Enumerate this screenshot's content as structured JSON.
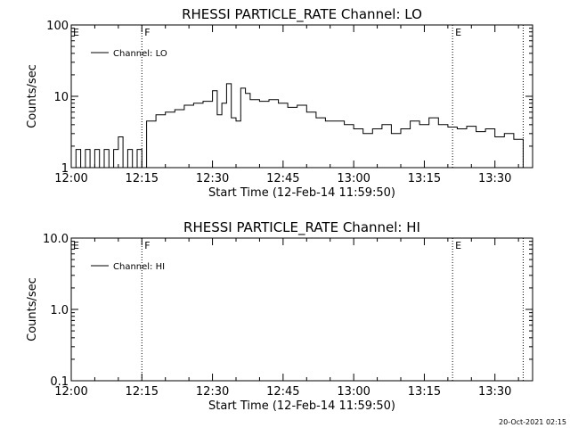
{
  "footer": {
    "timestamp": "20-Oct-2021 02:15"
  },
  "chart_data": [
    {
      "type": "line",
      "title": "RHESSI PARTICLE_RATE Channel: LO",
      "xlabel": "Start Time (12-Feb-14 11:59:50)",
      "ylabel": "Counts/sec",
      "yscale": "log",
      "ylim": [
        1,
        100
      ],
      "xlim": [
        "12:00",
        "13:38"
      ],
      "x_tick_labels": [
        "12:00",
        "12:15",
        "12:30",
        "12:45",
        "13:00",
        "13:15",
        "13:30"
      ],
      "y_tick_labels": [
        "1",
        "10",
        "100"
      ],
      "legend": {
        "label": "Channel: LO",
        "placement": "top-left"
      },
      "grid": false,
      "markers": [
        {
          "time": "12:15",
          "label": "F"
        },
        {
          "time": "13:21",
          "label": "E"
        },
        {
          "time": "13:36",
          "label": ""
        }
      ],
      "corner_label": "E",
      "series": [
        {
          "name": "Channel: LO",
          "x": [
            "12:00",
            "12:01",
            "12:02",
            "12:03",
            "12:04",
            "12:05",
            "12:06",
            "12:07",
            "12:08",
            "12:09",
            "12:10",
            "12:11",
            "12:12",
            "12:13",
            "12:14",
            "12:15",
            "12:16",
            "12:18",
            "12:20",
            "12:22",
            "12:24",
            "12:26",
            "12:28",
            "12:30",
            "12:31",
            "12:32",
            "12:33",
            "12:34",
            "12:35",
            "12:36",
            "12:37",
            "12:38",
            "12:40",
            "12:42",
            "12:44",
            "12:46",
            "12:48",
            "12:50",
            "12:52",
            "12:54",
            "12:56",
            "12:58",
            "13:00",
            "13:02",
            "13:04",
            "13:06",
            "13:08",
            "13:10",
            "13:12",
            "13:14",
            "13:16",
            "13:18",
            "13:20",
            "13:22",
            "13:24",
            "13:26",
            "13:28",
            "13:30",
            "13:32",
            "13:34",
            "13:35",
            "13:36"
          ],
          "values": [
            1,
            1.8,
            1,
            1.8,
            1,
            1.8,
            1,
            1.8,
            1,
            1.8,
            2.7,
            1,
            1.8,
            1,
            1.8,
            1,
            4.5,
            5.5,
            6,
            6.5,
            7.5,
            8,
            8.5,
            12,
            5.5,
            8,
            15,
            5,
            4.5,
            13,
            11,
            9,
            8.5,
            9,
            8,
            7,
            7.5,
            6,
            5,
            4.5,
            4.5,
            4,
            3.5,
            3,
            3.5,
            4,
            3,
            3.5,
            4.5,
            4,
            5,
            4,
            3.7,
            3.5,
            3.8,
            3.2,
            3.5,
            2.7,
            3,
            2.5,
            2.5,
            1
          ]
        }
      ]
    },
    {
      "type": "line",
      "title": "RHESSI PARTICLE_RATE Channel: HI",
      "xlabel": "Start Time (12-Feb-14 11:59:50)",
      "ylabel": "Counts/sec",
      "yscale": "log",
      "ylim": [
        0.1,
        10
      ],
      "xlim": [
        "12:00",
        "13:38"
      ],
      "x_tick_labels": [
        "12:00",
        "12:15",
        "12:30",
        "12:45",
        "13:00",
        "13:15",
        "13:30"
      ],
      "y_tick_labels": [
        "0.1",
        "1.0",
        "10.0"
      ],
      "legend": {
        "label": "Channel: HI",
        "placement": "top-left"
      },
      "grid": false,
      "markers": [
        {
          "time": "12:15",
          "label": "F"
        },
        {
          "time": "13:21",
          "label": "E"
        },
        {
          "time": "13:36",
          "label": ""
        }
      ],
      "corner_label": "E",
      "series": [
        {
          "name": "Channel: HI",
          "x": [],
          "values": []
        }
      ]
    }
  ]
}
